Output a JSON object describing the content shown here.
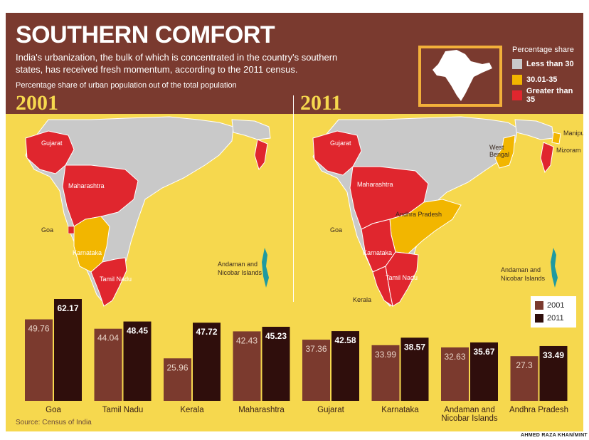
{
  "header": {
    "title": "SOUTHERN COMFORT",
    "subtitle": "India's urbanization, the bulk of which is concentrated in the country's southern states, has received fresh momentum, according to the 2011 census.",
    "caption": "Percentage share of urban population out of the total population"
  },
  "years": {
    "left": "2001",
    "right": "2011"
  },
  "legend": {
    "title": "Percentage share",
    "items": [
      {
        "label": "Less than 30",
        "color": "#c9c9c9"
      },
      {
        "label": "30.01-35",
        "color": "#f2b600"
      },
      {
        "label": "Greater than 35",
        "color": "#e0262e"
      }
    ]
  },
  "map_labels_2001": [
    "Gujarat",
    "Maharashtra",
    "Goa",
    "Karnataka",
    "Tamil Nadu",
    "Andaman and",
    "Nicobar Islands"
  ],
  "map_labels_2011": [
    "Gujarat",
    "Maharashtra",
    "Andhra Pradesh",
    "Goa",
    "Karnataka",
    "Tamil Nadu",
    "Kerala",
    "West",
    "Bengal",
    "Manipur",
    "Mizoram",
    "Andaman and",
    "Nicobar Islands"
  ],
  "bar_legend": [
    {
      "label": "2001",
      "color": "#7b3a2e"
    },
    {
      "label": "2011",
      "color": "#2f0e0c"
    }
  ],
  "chart_data": {
    "type": "bar",
    "title": "Percentage share of urban population out of the total population",
    "categories": [
      "Goa",
      "Tamil Nadu",
      "Kerala",
      "Maharashtra",
      "Gujarat",
      "Karnataka",
      "Andaman and Nicobar Islands",
      "Andhra Pradesh"
    ],
    "series": [
      {
        "name": "2001",
        "values": [
          49.76,
          44.04,
          25.96,
          42.43,
          37.36,
          33.99,
          32.63,
          27.3
        ],
        "labels": [
          "49.76",
          "44.04",
          "25.96",
          "42.43",
          "37.36",
          "33.99",
          "32.63",
          "27.3"
        ]
      },
      {
        "name": "2011",
        "values": [
          62.17,
          48.45,
          47.72,
          45.23,
          42.58,
          38.57,
          35.67,
          33.49
        ],
        "labels": [
          "62.17",
          "48.45",
          "47.72",
          "45.23",
          "42.58",
          "38.57",
          "35.67",
          "33.49"
        ]
      }
    ],
    "xlabel": "",
    "ylabel": "",
    "ylim": [
      0,
      65
    ]
  },
  "source": "Source:  Census of India",
  "credit": "AHMED RAZA KHAN/MINT"
}
